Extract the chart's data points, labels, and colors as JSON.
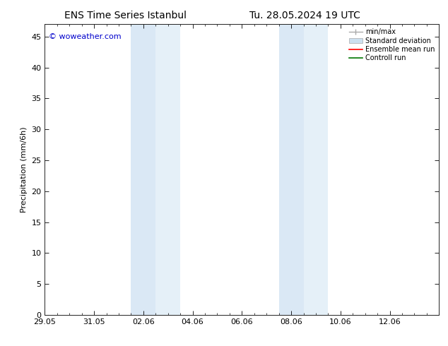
{
  "title_left": "ENS Time Series Istanbul",
  "title_right": "Tu. 28.05.2024 19 UTC",
  "ylabel": "Precipitation (mm/6h)",
  "watermark": "© woweather.com",
  "watermark_color": "#0000cc",
  "xlim_left": 0,
  "xlim_right": 16,
  "ylim_bottom": 0,
  "ylim_top": 47,
  "yticks": [
    0,
    5,
    10,
    15,
    20,
    25,
    30,
    35,
    40,
    45
  ],
  "xtick_labels": [
    "29.05",
    "31.05",
    "02.06",
    "04.06",
    "06.06",
    "08.06",
    "10.06",
    "12.06"
  ],
  "xtick_positions": [
    0,
    2,
    4,
    6,
    8,
    10,
    12,
    14
  ],
  "shaded_regions": [
    {
      "x_start": 3.5,
      "x_end": 4.5,
      "color": "#dae8f5"
    },
    {
      "x_start": 4.5,
      "x_end": 5.5,
      "color": "#e5f0f8"
    },
    {
      "x_start": 9.5,
      "x_end": 10.5,
      "color": "#dae8f5"
    },
    {
      "x_start": 10.5,
      "x_end": 11.5,
      "color": "#e5f0f8"
    }
  ],
  "legend_entries": [
    {
      "label": "min/max",
      "color": "#aaaaaa",
      "type": "minmax"
    },
    {
      "label": "Standard deviation",
      "color": "#cce0f0",
      "type": "patch"
    },
    {
      "label": "Ensemble mean run",
      "color": "#ff0000",
      "type": "line"
    },
    {
      "label": "Controll run",
      "color": "#007700",
      "type": "line"
    }
  ],
  "bg_color": "#ffffff",
  "grid_color": "#dddddd",
  "title_fontsize": 10,
  "axis_fontsize": 8,
  "tick_fontsize": 8
}
